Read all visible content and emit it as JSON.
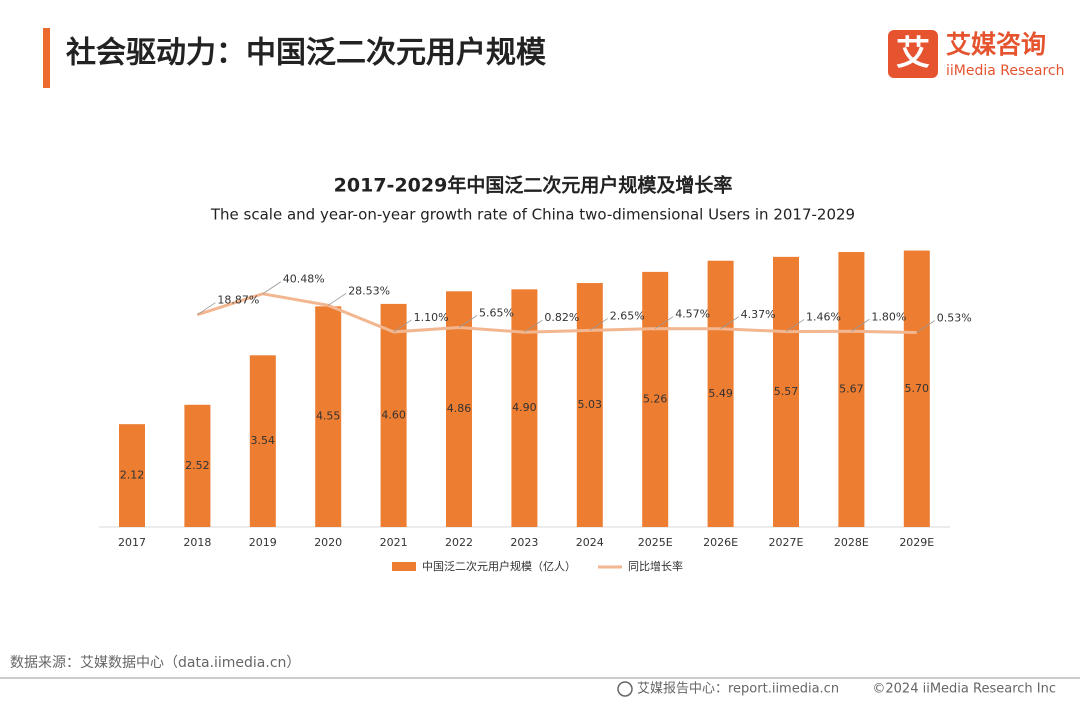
{
  "header": {
    "title": "社会驱动力：中国泛二次元用户规模",
    "logo_mark": "艾",
    "logo_name": "艾媒咨询",
    "logo_en": "iiMedia Research"
  },
  "chart_data": {
    "type": "bar_line",
    "title": "2017-2029年中国泛二次元用户规模及增长率",
    "subtitle": "The scale and year-on-year growth rate of China two-dimensional Users in 2017-2029",
    "categories": [
      "2017",
      "2018",
      "2019",
      "2020",
      "2021",
      "2022",
      "2023",
      "2024",
      "2025E",
      "2026E",
      "2027E",
      "2028E",
      "2029E"
    ],
    "ylim": [
      0,
      6
    ],
    "y2lim": [
      -200,
      100
    ],
    "series": [
      {
        "name": "中国泛二次元用户规模（亿人）",
        "color": "#ed7d31",
        "type": "bar",
        "values": [
          2.12,
          2.52,
          3.54,
          4.55,
          4.6,
          4.86,
          4.9,
          5.03,
          5.26,
          5.49,
          5.57,
          5.67,
          5.7
        ],
        "value_labels": [
          "2.12",
          "2.52",
          "3.54",
          "4.55",
          "4.60",
          "4.86",
          "4.90",
          "5.03",
          "5.26",
          "5.49",
          "5.57",
          "5.67",
          "5.70"
        ]
      },
      {
        "name": "同比增长率",
        "color": "#f2b690",
        "type": "line",
        "axis": "y2",
        "values": [
          null,
          18.87,
          40.48,
          28.53,
          1.1,
          5.65,
          0.82,
          2.65,
          4.57,
          4.37,
          1.46,
          1.8,
          0.53
        ],
        "value_labels": [
          null,
          "18.87%",
          "40.48%",
          "28.53%",
          "1.10%",
          "5.65%",
          "0.82%",
          "2.65%",
          "4.57%",
          "4.37%",
          "1.46%",
          "1.80%",
          "0.53%"
        ]
      }
    ]
  },
  "footer": {
    "source": "数据来源：艾媒数据中心（data.iimedia.cn）",
    "report": "艾媒报告中心：report.iimedia.cn",
    "copyright": "©2024  iiMedia Research Inc"
  }
}
